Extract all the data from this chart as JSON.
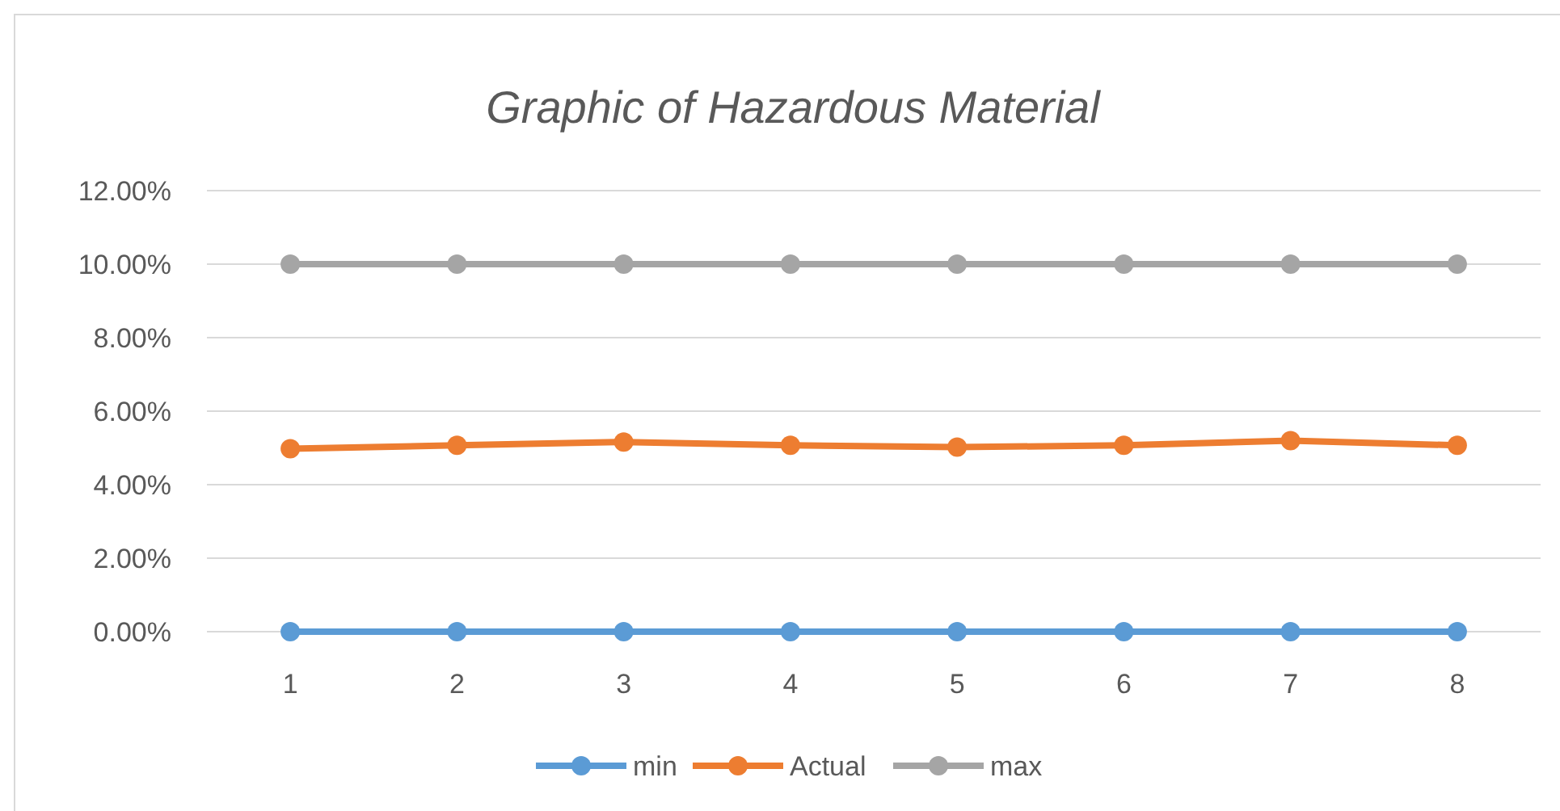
{
  "chart_data": {
    "type": "line",
    "title": "Graphic of Hazardous Material",
    "categories": [
      "1",
      "2",
      "3",
      "4",
      "5",
      "6",
      "7",
      "8"
    ],
    "series": [
      {
        "name": "min",
        "color": "#5b9bd5",
        "values": [
          0,
          0,
          0,
          0,
          0,
          0,
          0,
          0
        ]
      },
      {
        "name": "Actual",
        "color": "#ed7d31",
        "values": [
          4.98,
          5.07,
          5.16,
          5.07,
          5.02,
          5.07,
          5.2,
          5.07
        ]
      },
      {
        "name": "max",
        "color": "#a5a5a5",
        "values": [
          10,
          10,
          10,
          10,
          10,
          10,
          10,
          10
        ]
      }
    ],
    "ylim": [
      0,
      12
    ],
    "yticks": [
      {
        "value": 0,
        "label": "0.00%"
      },
      {
        "value": 2,
        "label": "2.00%"
      },
      {
        "value": 4,
        "label": "4.00%"
      },
      {
        "value": 6,
        "label": "6.00%"
      },
      {
        "value": 8,
        "label": "8.00%"
      },
      {
        "value": 10,
        "label": "10.00%"
      },
      {
        "value": 12,
        "label": "12.00%"
      }
    ],
    "grid": "y",
    "legend": "bottom",
    "marker": "circle",
    "line_style": "solid"
  }
}
